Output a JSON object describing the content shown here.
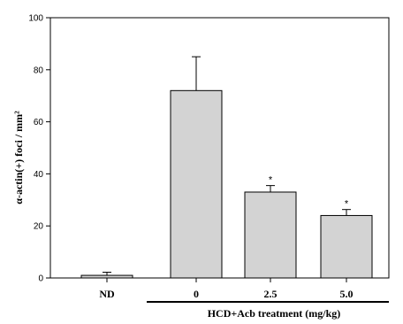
{
  "chart_data": {
    "type": "bar",
    "categories": [
      "ND",
      "0",
      "2.5",
      "5.0"
    ],
    "values": [
      1,
      72,
      33,
      24
    ],
    "errors": [
      1.2,
      13,
      2.5,
      2.3
    ],
    "significance": [
      "",
      "",
      "*",
      "*"
    ],
    "ylabel": "α-actin(+) foci / mm²",
    "group_label": "HCD+Acb treatment (mg/kg)",
    "ylim": [
      0,
      100
    ],
    "yticks": [
      0,
      20,
      40,
      60,
      80,
      100
    ],
    "bar_color": "#d3d3d3",
    "grid": false,
    "legend": "none"
  }
}
